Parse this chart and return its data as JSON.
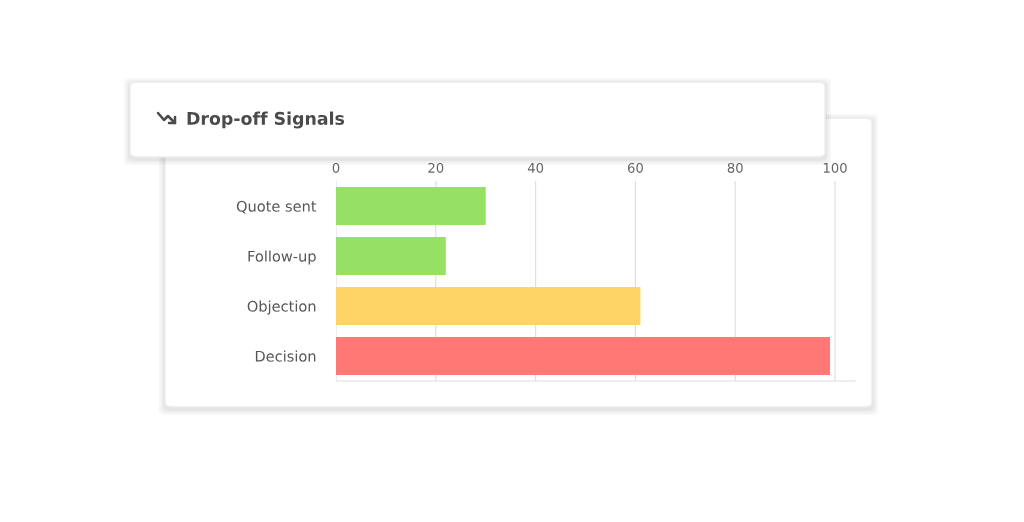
{
  "chart_data": {
    "type": "bar",
    "orientation": "horizontal",
    "title": "Drop-off Signals",
    "categories": [
      "Quote sent",
      "Follow-up",
      "Objection",
      "Decision"
    ],
    "values": [
      30,
      22,
      61,
      99
    ],
    "colors": [
      "#96e064",
      "#96e064",
      "#ffd466",
      "#ff7876"
    ],
    "xlim": [
      0,
      104
    ],
    "xticks": [
      0,
      20,
      40,
      60,
      80,
      100
    ],
    "grid": "x"
  }
}
